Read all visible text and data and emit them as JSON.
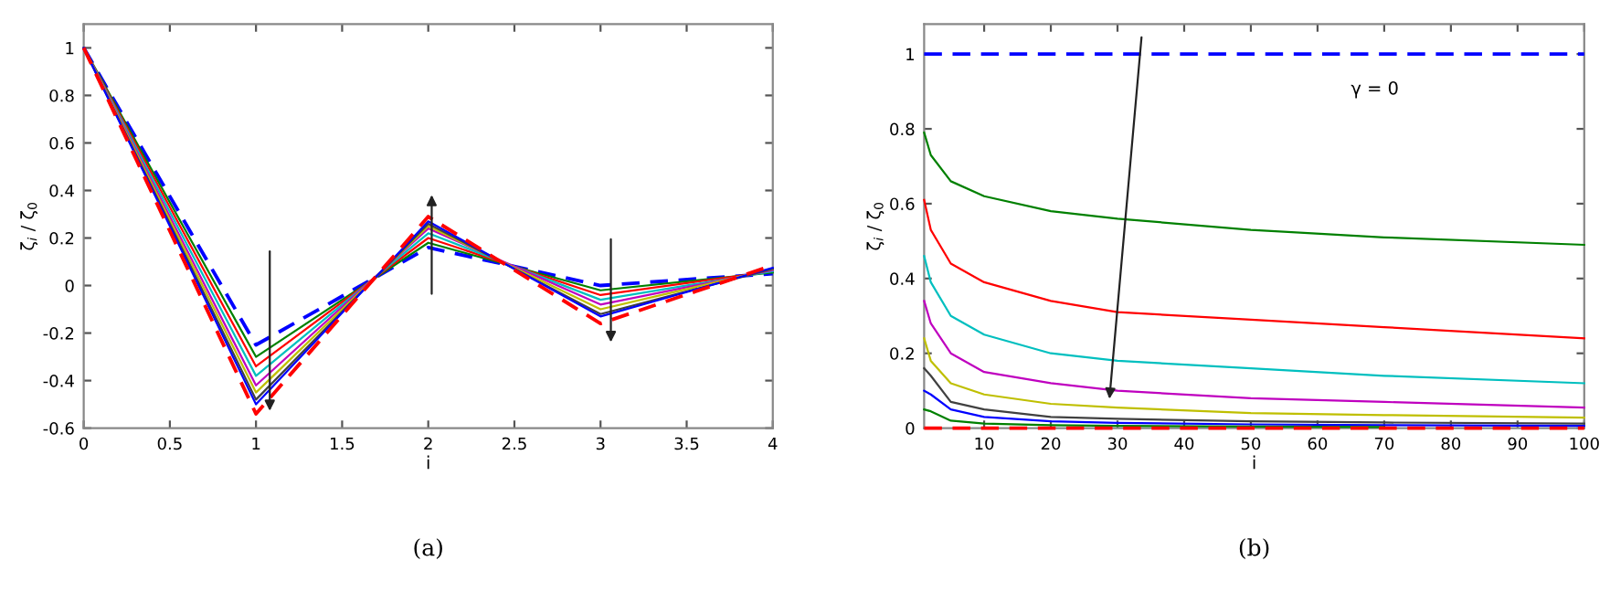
{
  "chart_data": [
    {
      "type": "line",
      "xlabel": "i",
      "ylabel": "ζ$_{i}$ / ζ$_{0}$",
      "x": [
        0,
        1,
        2,
        3,
        4
      ],
      "xlim": [
        0,
        4
      ],
      "xticks": [
        0,
        0.5,
        1,
        1.5,
        2,
        2.5,
        3,
        3.5,
        4
      ],
      "ylim": [
        -0.6,
        1.1
      ],
      "yticks": [
        -0.6,
        -0.4,
        -0.2,
        0,
        0.2,
        0.4,
        0.6,
        0.8,
        1
      ],
      "grid": false,
      "marker": "none",
      "annotations": [
        "(a)"
      ],
      "series": [
        {
          "color": "#0000ff",
          "line_style": "dashed",
          "values": [
            1,
            -0.25,
            0.16,
            0.0,
            0.05
          ]
        },
        {
          "color": "#008000",
          "line_style": "solid",
          "values": [
            1,
            -0.3,
            0.18,
            -0.02,
            0.055
          ]
        },
        {
          "color": "#ff0000",
          "line_style": "solid",
          "values": [
            1,
            -0.34,
            0.2,
            -0.04,
            0.06
          ]
        },
        {
          "color": "#00bfbf",
          "line_style": "solid",
          "values": [
            1,
            -0.38,
            0.22,
            -0.06,
            0.06
          ]
        },
        {
          "color": "#bf00bf",
          "line_style": "solid",
          "values": [
            1,
            -0.42,
            0.24,
            -0.08,
            0.065
          ]
        },
        {
          "color": "#bfbf00",
          "line_style": "solid",
          "values": [
            1,
            -0.45,
            0.25,
            -0.1,
            0.07
          ]
        },
        {
          "color": "#404040",
          "line_style": "solid",
          "values": [
            1,
            -0.48,
            0.26,
            -0.12,
            0.07
          ]
        },
        {
          "color": "#0000ff",
          "line_style": "solid",
          "values": [
            1,
            -0.5,
            0.27,
            -0.13,
            0.075
          ]
        },
        {
          "color": "#ff0000",
          "line_style": "dashed",
          "values": [
            1,
            -0.54,
            0.29,
            -0.16,
            0.085
          ]
        }
      ]
    },
    {
      "type": "line",
      "xlabel": "i",
      "ylabel": "ζ$_{i}$ / ζ$_{0}$",
      "x": [
        1,
        2,
        5,
        10,
        20,
        30,
        50,
        70,
        100
      ],
      "xlim": [
        1,
        100
      ],
      "xticks": [
        10,
        20,
        30,
        40,
        50,
        60,
        70,
        80,
        90,
        100
      ],
      "ylim": [
        0,
        1.08
      ],
      "yticks": [
        0,
        0.2,
        0.4,
        0.6,
        0.8,
        1
      ],
      "grid": false,
      "marker": "none",
      "annotations": [
        {
          "text": "γ = 0",
          "x": 65,
          "y": 1
        },
        "(b)"
      ],
      "series": [
        {
          "color": "#0000ff",
          "line_style": "dashed",
          "values": [
            1,
            1,
            1,
            1,
            1,
            1,
            1,
            1,
            1
          ]
        },
        {
          "color": "#008000",
          "line_style": "solid",
          "values": [
            0.79,
            0.73,
            0.66,
            0.62,
            0.58,
            0.56,
            0.53,
            0.51,
            0.49
          ]
        },
        {
          "color": "#ff0000",
          "line_style": "solid",
          "values": [
            0.61,
            0.53,
            0.44,
            0.39,
            0.34,
            0.31,
            0.29,
            0.27,
            0.24
          ]
        },
        {
          "color": "#00bfbf",
          "line_style": "solid",
          "values": [
            0.46,
            0.39,
            0.3,
            0.25,
            0.2,
            0.18,
            0.16,
            0.14,
            0.12
          ]
        },
        {
          "color": "#bf00bf",
          "line_style": "solid",
          "values": [
            0.34,
            0.28,
            0.2,
            0.15,
            0.12,
            0.1,
            0.08,
            0.07,
            0.055
          ]
        },
        {
          "color": "#bfbf00",
          "line_style": "solid",
          "values": [
            0.24,
            0.18,
            0.12,
            0.09,
            0.065,
            0.055,
            0.04,
            0.035,
            0.028
          ]
        },
        {
          "color": "#404040",
          "line_style": "solid",
          "values": [
            0.16,
            0.14,
            0.07,
            0.05,
            0.03,
            0.025,
            0.018,
            0.015,
            0.012
          ]
        },
        {
          "color": "#0000ff",
          "line_style": "solid",
          "values": [
            0.1,
            0.09,
            0.05,
            0.03,
            0.018,
            0.014,
            0.01,
            0.008,
            0.006
          ]
        },
        {
          "color": "#008000",
          "line_style": "solid",
          "values": [
            0.05,
            0.045,
            0.02,
            0.012,
            0.008,
            0.006,
            0.004,
            0.003,
            null
          ]
        },
        {
          "color": "#ff0000",
          "line_style": "dashed",
          "values": [
            0,
            0,
            0,
            0,
            0,
            0,
            0,
            0,
            0
          ]
        }
      ]
    }
  ]
}
